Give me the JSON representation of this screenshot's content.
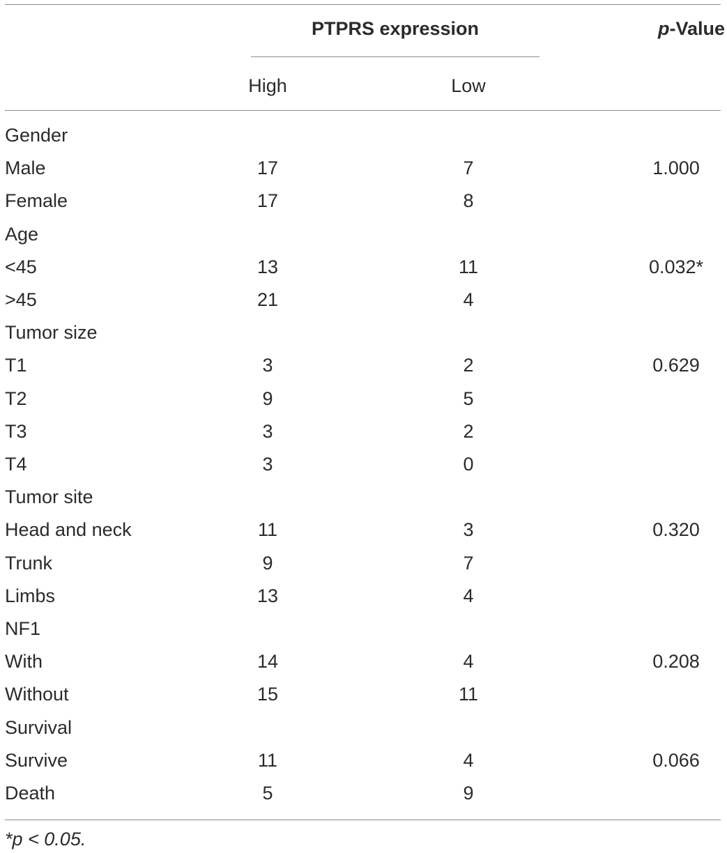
{
  "header": {
    "group_label": "PTPRS expression",
    "p_value_italic": "p",
    "p_value_rest": "-Value",
    "subcols": [
      "High",
      "Low"
    ]
  },
  "rows": [
    {
      "label": "Gender",
      "high": "",
      "low": "",
      "p": ""
    },
    {
      "label": "Male",
      "high": "17",
      "low": "7",
      "p": "1.000"
    },
    {
      "label": "Female",
      "high": "17",
      "low": "8",
      "p": ""
    },
    {
      "label": "Age",
      "high": "",
      "low": "",
      "p": ""
    },
    {
      "label": "<45",
      "high": "13",
      "low": "11",
      "p": "0.032*"
    },
    {
      "label": ">45",
      "high": "21",
      "low": "4",
      "p": ""
    },
    {
      "label": "Tumor size",
      "high": "",
      "low": "",
      "p": ""
    },
    {
      "label": "T1",
      "high": "3",
      "low": "2",
      "p": "0.629"
    },
    {
      "label": "T2",
      "high": "9",
      "low": "5",
      "p": ""
    },
    {
      "label": "T3",
      "high": "3",
      "low": "2",
      "p": ""
    },
    {
      "label": "T4",
      "high": "3",
      "low": "0",
      "p": ""
    },
    {
      "label": "Tumor site",
      "high": "",
      "low": "",
      "p": ""
    },
    {
      "label": "Head and neck",
      "high": "11",
      "low": "3",
      "p": "0.320"
    },
    {
      "label": "Trunk",
      "high": "9",
      "low": "7",
      "p": ""
    },
    {
      "label": "Limbs",
      "high": "13",
      "low": "4",
      "p": ""
    },
    {
      "label": "NF1",
      "high": "",
      "low": "",
      "p": ""
    },
    {
      "label": "With",
      "high": "14",
      "low": "4",
      "p": "0.208"
    },
    {
      "label": "Without",
      "high": "15",
      "low": "11",
      "p": ""
    },
    {
      "label": "Survival",
      "high": "",
      "low": "",
      "p": ""
    },
    {
      "label": "Survive",
      "high": "11",
      "low": "4",
      "p": "0.066"
    },
    {
      "label": "Death",
      "high": "5",
      "low": "9",
      "p": ""
    }
  ],
  "footnote": "*p < 0.05."
}
